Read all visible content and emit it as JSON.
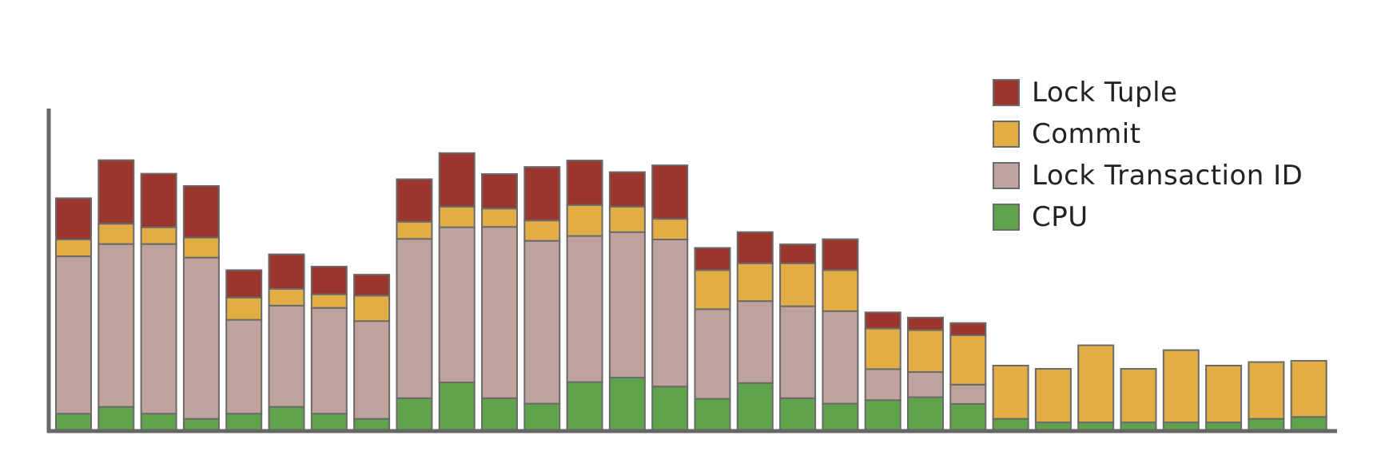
{
  "chart_data": {
    "type": "bar",
    "stacked": true,
    "title": "",
    "xlabel": "",
    "ylabel": "",
    "ylim": [
      0,
      100
    ],
    "grid": false,
    "legend_position": "top-right",
    "series": [
      {
        "name": "CPU",
        "color": "#5fa34b",
        "values": [
          5.4,
          7.5,
          5.4,
          3.8,
          5.4,
          7.5,
          5.4,
          3.8,
          10.2,
          15.1,
          10.2,
          8.5,
          15.2,
          16.6,
          13.8,
          10.0,
          14.9,
          10.2,
          8.5,
          9.6,
          10.5,
          8.4,
          3.8,
          2.7,
          2.7,
          2.7,
          2.7,
          2.7,
          3.8,
          4.4
        ]
      },
      {
        "name": "Lock Transaction ID",
        "color": "#c0a29c",
        "values": [
          48.8,
          50.5,
          52.6,
          50.0,
          29.1,
          31.4,
          32.8,
          30.3,
          49.4,
          48.1,
          53.1,
          50.5,
          45.3,
          45.1,
          45.6,
          27.8,
          25.4,
          28.5,
          28.7,
          9.6,
          7.8,
          6.0,
          0,
          0,
          0,
          0,
          0,
          0,
          0,
          0
        ]
      },
      {
        "name": "Commit",
        "color": "#e2ad45",
        "values": [
          5.2,
          6.3,
          5.2,
          6.2,
          6.9,
          5.2,
          4.2,
          7.9,
          5.3,
          6.4,
          5.7,
          6.3,
          9.6,
          7.9,
          6.4,
          12.1,
          11.7,
          13.3,
          12.7,
          12.6,
          13.0,
          15.3,
          16.5,
          16.6,
          23.9,
          16.6,
          22.4,
          17.6,
          17.6,
          17.4
        ]
      },
      {
        "name": "Lock Tuple",
        "color": "#9b362f",
        "values": [
          12.8,
          19.7,
          16.6,
          16.0,
          8.5,
          10.7,
          8.6,
          6.5,
          13.2,
          16.6,
          10.7,
          16.6,
          13.8,
          10.7,
          16.6,
          6.9,
          9.7,
          5.9,
          9.6,
          5.0,
          3.9,
          3.8,
          0,
          0,
          0,
          0,
          0,
          0,
          0,
          0
        ]
      }
    ],
    "legend_order": [
      "Lock Tuple",
      "Commit",
      "Lock Transaction ID",
      "CPU"
    ]
  }
}
